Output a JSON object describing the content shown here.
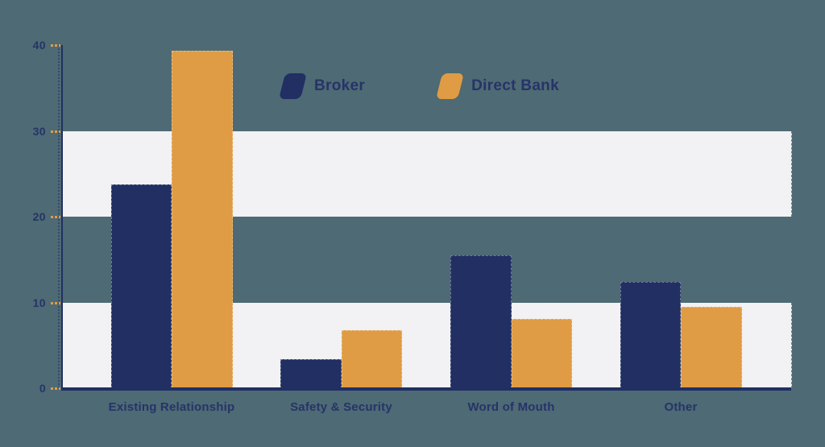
{
  "chart_data": {
    "type": "bar",
    "title": "",
    "categories": [
      "Existing Relationship",
      "Safety & Security",
      "Word of Mouth",
      "Other"
    ],
    "series": [
      {
        "name": "Broker",
        "color": "#212f63",
        "values": [
          23.8,
          3.4,
          15.5,
          12.4
        ]
      },
      {
        "name": "Direct Bank",
        "color": "#df9c44",
        "values": [
          39.3,
          6.8,
          8.1,
          9.5
        ]
      }
    ],
    "xlabel": "",
    "ylabel": "",
    "ylim": [
      0,
      40
    ],
    "yticks": [
      0,
      10,
      20,
      30,
      40
    ],
    "grid": "striped-bands",
    "band_ranges": [
      [
        0,
        10
      ],
      [
        20,
        30
      ]
    ],
    "band_color": "#f2f1f3",
    "background_color": "#4e6a74",
    "axis_color": "#212f63",
    "tick_color": "#df9c44",
    "label_color": "#263468",
    "legend_position": "top-center"
  }
}
